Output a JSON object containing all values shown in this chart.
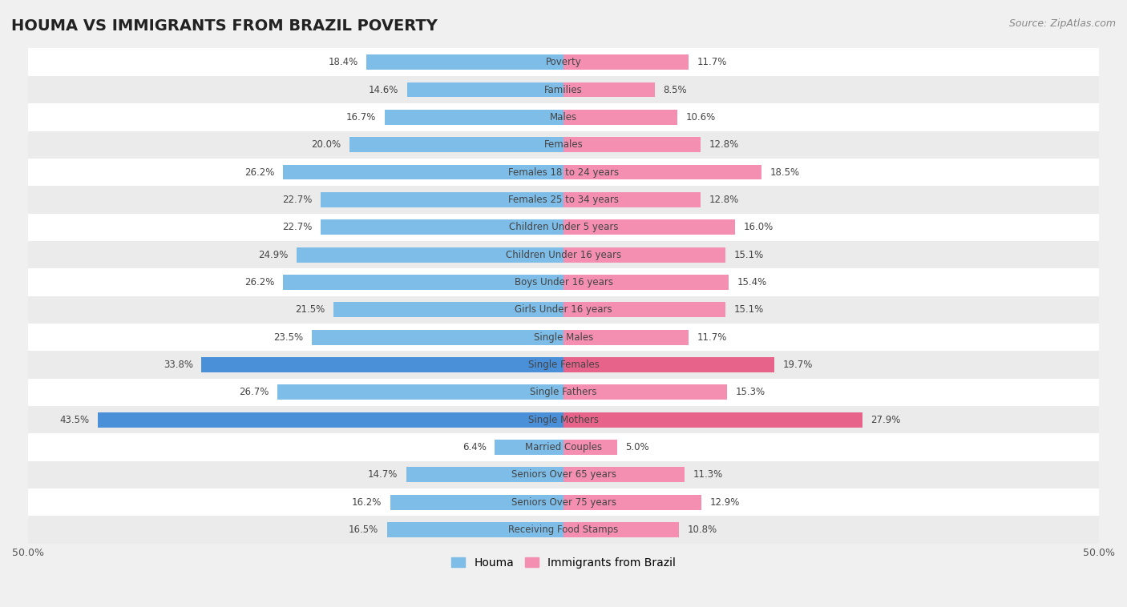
{
  "title": "HOUMA VS IMMIGRANTS FROM BRAZIL POVERTY",
  "source": "Source: ZipAtlas.com",
  "categories": [
    "Poverty",
    "Families",
    "Males",
    "Females",
    "Females 18 to 24 years",
    "Females 25 to 34 years",
    "Children Under 5 years",
    "Children Under 16 years",
    "Boys Under 16 years",
    "Girls Under 16 years",
    "Single Males",
    "Single Females",
    "Single Fathers",
    "Single Mothers",
    "Married Couples",
    "Seniors Over 65 years",
    "Seniors Over 75 years",
    "Receiving Food Stamps"
  ],
  "houma_values": [
    18.4,
    14.6,
    16.7,
    20.0,
    26.2,
    22.7,
    22.7,
    24.9,
    26.2,
    21.5,
    23.5,
    33.8,
    26.7,
    43.5,
    6.4,
    14.7,
    16.2,
    16.5
  ],
  "brazil_values": [
    11.7,
    8.5,
    10.6,
    12.8,
    18.5,
    12.8,
    16.0,
    15.1,
    15.4,
    15.1,
    11.7,
    19.7,
    15.3,
    27.9,
    5.0,
    11.3,
    12.9,
    10.8
  ],
  "houma_color": "#7dbde8",
  "brazil_color": "#f48fb1",
  "houma_highlight_indices": [
    11,
    13
  ],
  "brazil_highlight_indices": [
    11,
    13
  ],
  "houma_highlight_color": "#4a90d9",
  "brazil_highlight_color": "#e8638a",
  "row_colors": [
    "#ffffff",
    "#ebebeb"
  ],
  "background_color": "#f0f0f0",
  "axis_limit": 50.0,
  "legend_houma": "Houma",
  "legend_brazil": "Immigrants from Brazil",
  "title_fontsize": 14,
  "source_fontsize": 9,
  "label_fontsize": 8.5,
  "value_fontsize": 8.5
}
